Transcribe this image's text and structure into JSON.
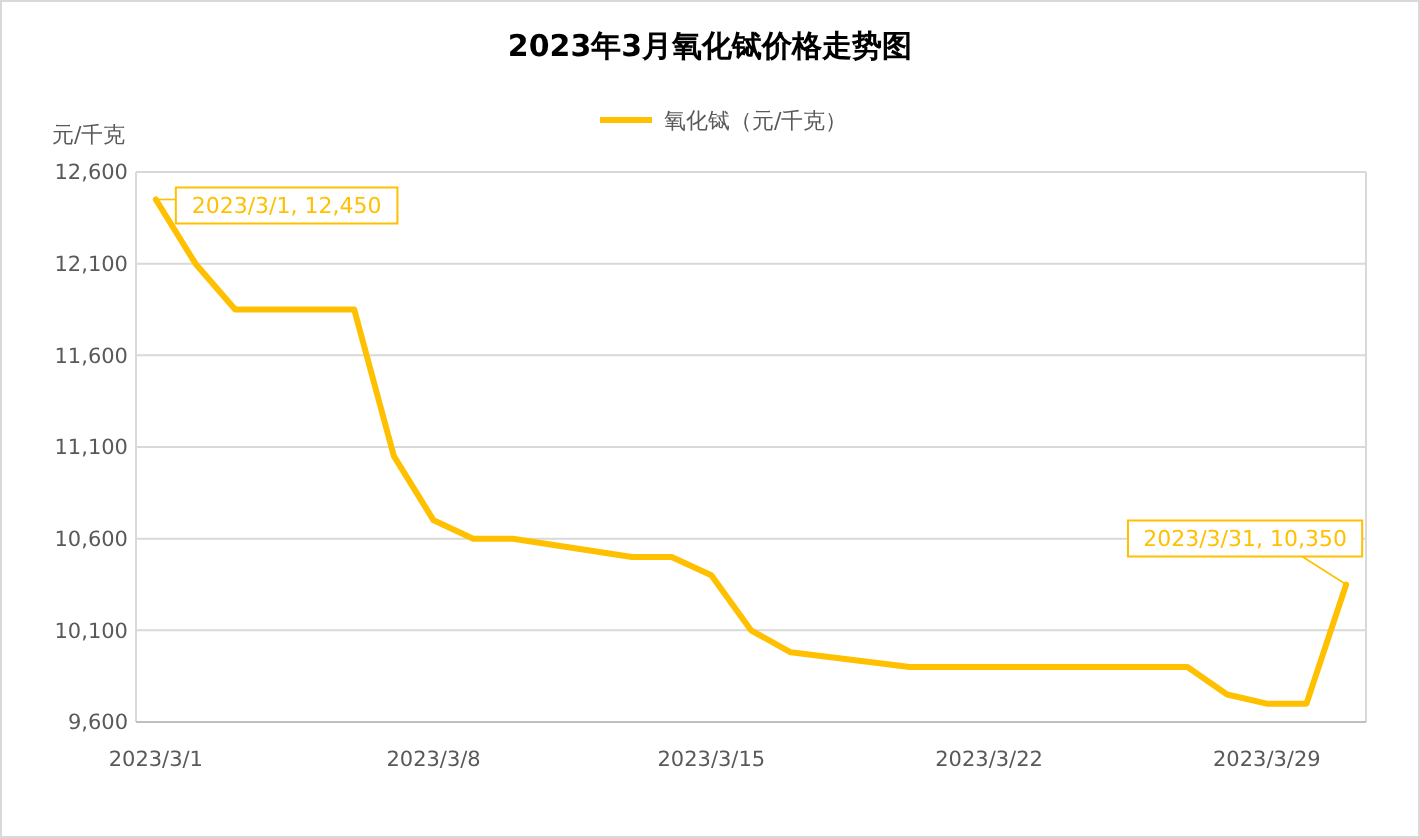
{
  "chart_data": {
    "type": "line",
    "title": "2023年3月氧化铽价格走势图",
    "ylabel": "元/千克",
    "x": [
      "2023-03-01",
      "2023-03-02",
      "2023-03-03",
      "2023-03-06",
      "2023-03-07",
      "2023-03-08",
      "2023-03-09",
      "2023-03-10",
      "2023-03-13",
      "2023-03-14",
      "2023-03-15",
      "2023-03-16",
      "2023-03-17",
      "2023-03-20",
      "2023-03-21",
      "2023-03-22",
      "2023-03-23",
      "2023-03-24",
      "2023-03-27",
      "2023-03-28",
      "2023-03-29",
      "2023-03-30",
      "2023-03-31"
    ],
    "series": [
      {
        "name": "氧化铽（元/千克）",
        "color": "#ffc000",
        "values": [
          12450,
          12100,
          11850,
          11850,
          11050,
          10700,
          10600,
          10600,
          10500,
          10500,
          10400,
          10100,
          9980,
          9900,
          9900,
          9900,
          9900,
          9900,
          9900,
          9750,
          9700,
          9700,
          10350
        ]
      }
    ],
    "xlim": [
      "2023-02-28T12:00",
      "2023-03-31T12:00"
    ],
    "xticks": [
      {
        "value": "2023-03-01",
        "label": "2023/3/1"
      },
      {
        "value": "2023-03-08",
        "label": "2023/3/8"
      },
      {
        "value": "2023-03-15",
        "label": "2023/3/15"
      },
      {
        "value": "2023-03-22",
        "label": "2023/3/22"
      },
      {
        "value": "2023-03-29",
        "label": "2023/3/29"
      }
    ],
    "ylim": [
      9600,
      12600
    ],
    "yticks": [
      {
        "value": 9600,
        "label": "9,600"
      },
      {
        "value": 10100,
        "label": "10,100"
      },
      {
        "value": 10600,
        "label": "10,600"
      },
      {
        "value": 11100,
        "label": "11,100"
      },
      {
        "value": 11600,
        "label": "11,600"
      },
      {
        "value": 12100,
        "label": "12,100"
      },
      {
        "value": 12600,
        "label": "12,600"
      }
    ],
    "grid": "y",
    "legend": "top",
    "marker": "none",
    "line_style": "solid",
    "annotations": [
      {
        "text": "2023/3/1, 12,450",
        "x": "2023-03-01",
        "y": 12450
      },
      {
        "text": "2023/3/31, 10,350",
        "x": "2023-03-31",
        "y": 10350
      }
    ]
  }
}
